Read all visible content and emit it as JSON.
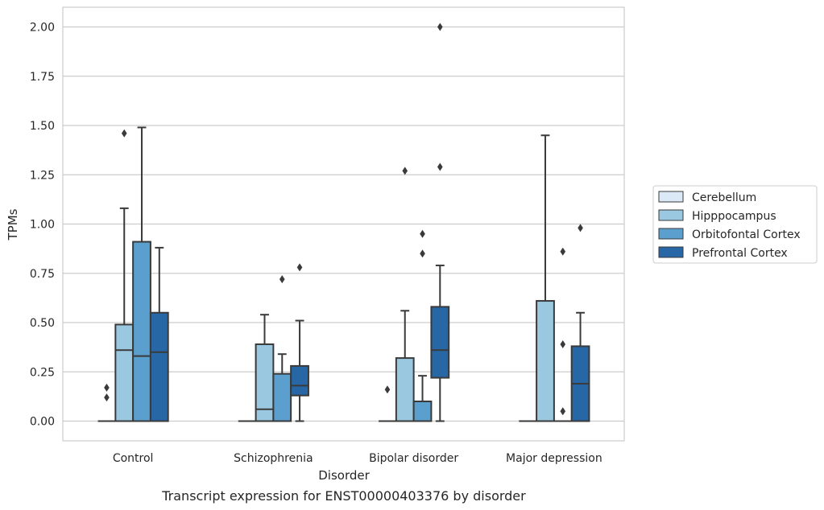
{
  "chart_data": {
    "type": "box",
    "caption": "Transcript expression for ENST00000403376 by disorder",
    "xlabel": "Disorder",
    "ylabel": "TPMs",
    "ylim": [
      -0.1,
      2.1
    ],
    "yticks": [
      0.0,
      0.25,
      0.5,
      0.75,
      1.0,
      1.25,
      1.5,
      1.75,
      2.0
    ],
    "ytick_labels": [
      "0.00",
      "0.25",
      "0.50",
      "0.75",
      "1.00",
      "1.25",
      "1.50",
      "1.75",
      "2.00"
    ],
    "grid": "horizontal",
    "legend_position": "right",
    "categories": [
      "Control",
      "Schizophrenia",
      "Bipolar disorder",
      "Major depression"
    ],
    "series": [
      {
        "name": "Cerebellum",
        "color": "#dbe9f6",
        "boxes": [
          {
            "q1": 0,
            "median": 0,
            "q3": 0,
            "whisker_low": 0,
            "whisker_high": 0,
            "outliers": [
              0.12,
              0.17
            ]
          },
          {
            "q1": 0,
            "median": 0,
            "q3": 0,
            "whisker_low": 0,
            "whisker_high": 0,
            "outliers": []
          },
          {
            "q1": 0,
            "median": 0,
            "q3": 0,
            "whisker_low": 0,
            "whisker_high": 0,
            "outliers": [
              0.16
            ]
          },
          {
            "q1": 0,
            "median": 0,
            "q3": 0,
            "whisker_low": 0,
            "whisker_high": 0,
            "outliers": []
          }
        ]
      },
      {
        "name": "Hipppocampus",
        "color": "#9ac8e0",
        "boxes": [
          {
            "q1": 0,
            "median": 0.36,
            "q3": 0.49,
            "whisker_low": 0,
            "whisker_high": 1.08,
            "outliers": [
              1.46
            ]
          },
          {
            "q1": 0,
            "median": 0.06,
            "q3": 0.39,
            "whisker_low": 0,
            "whisker_high": 0.54,
            "outliers": []
          },
          {
            "q1": 0,
            "median": 0,
            "q3": 0.32,
            "whisker_low": 0,
            "whisker_high": 0.56,
            "outliers": [
              1.27
            ]
          },
          {
            "q1": 0,
            "median": 0,
            "q3": 0.61,
            "whisker_low": 0,
            "whisker_high": 1.45,
            "outliers": []
          }
        ]
      },
      {
        "name": "Orbitofontal Cortex",
        "color": "#5a9fcd",
        "boxes": [
          {
            "q1": 0,
            "median": 0.33,
            "q3": 0.91,
            "whisker_low": 0,
            "whisker_high": 1.49,
            "outliers": []
          },
          {
            "q1": 0,
            "median": 0,
            "q3": 0.24,
            "whisker_low": 0,
            "whisker_high": 0.34,
            "outliers": [
              0.72
            ]
          },
          {
            "q1": 0,
            "median": 0,
            "q3": 0.1,
            "whisker_low": 0,
            "whisker_high": 0.23,
            "outliers": [
              0.85,
              0.95
            ]
          },
          {
            "q1": 0,
            "median": 0,
            "q3": 0,
            "whisker_low": 0,
            "whisker_high": 0,
            "outliers": [
              0.05,
              0.39,
              0.86
            ]
          }
        ]
      },
      {
        "name": "Prefrontal Cortex",
        "color": "#2867a5",
        "boxes": [
          {
            "q1": 0,
            "median": 0.35,
            "q3": 0.55,
            "whisker_low": 0,
            "whisker_high": 0.88,
            "outliers": []
          },
          {
            "q1": 0.13,
            "median": 0.18,
            "q3": 0.28,
            "whisker_low": 0,
            "whisker_high": 0.51,
            "outliers": [
              0.78
            ]
          },
          {
            "q1": 0.22,
            "median": 0.36,
            "q3": 0.58,
            "whisker_low": 0,
            "whisker_high": 0.79,
            "outliers": [
              1.29,
              2.0
            ]
          },
          {
            "q1": 0,
            "median": 0.19,
            "q3": 0.38,
            "whisker_low": 0,
            "whisker_high": 0.55,
            "outliers": [
              0.98
            ]
          }
        ]
      }
    ]
  }
}
